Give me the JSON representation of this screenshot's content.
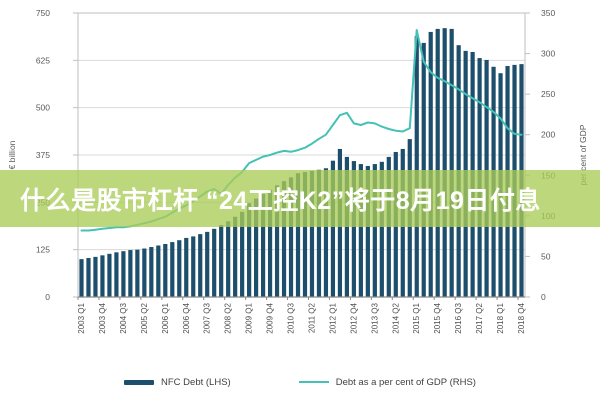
{
  "overlay": {
    "text": "什么是股市杠杆 “24工控K2”将于8月19日付息",
    "background": "rgba(171,204,88,0.78)",
    "text_color": "#ffffff"
  },
  "legend": {
    "items": [
      {
        "label": "NFC Debt (LHS)",
        "marker": "bar"
      },
      {
        "label": "Debt as a per cent of GDP (RHS)",
        "marker": "line"
      }
    ]
  },
  "chart_data": {
    "type": "bar",
    "subtype": "bar-plus-line-dual-axis",
    "grid": true,
    "legend_position": "bottom",
    "categories": [
      "2003 Q1",
      "2003 Q2",
      "2003 Q3",
      "2003 Q4",
      "2004 Q1",
      "2004 Q2",
      "2004 Q3",
      "2004 Q4",
      "2005 Q1",
      "2005 Q2",
      "2005 Q3",
      "2005 Q4",
      "2006 Q1",
      "2006 Q2",
      "2006 Q3",
      "2006 Q4",
      "2007 Q1",
      "2007 Q2",
      "2007 Q3",
      "2007 Q4",
      "2008 Q1",
      "2008 Q2",
      "2008 Q3",
      "2008 Q4",
      "2009 Q1",
      "2009 Q2",
      "2009 Q3",
      "2009 Q4",
      "2010 Q1",
      "2010 Q2",
      "2010 Q3",
      "2010 Q4",
      "2011 Q1",
      "2011 Q2",
      "2011 Q3",
      "2011 Q4",
      "2012 Q1",
      "2012 Q2",
      "2012 Q3",
      "2012 Q4",
      "2013 Q1",
      "2013 Q2",
      "2013 Q3",
      "2013 Q4",
      "2014 Q1",
      "2014 Q2",
      "2014 Q3",
      "2014 Q4",
      "2015 Q1",
      "2015 Q2",
      "2015 Q3",
      "2015 Q4",
      "2016 Q1",
      "2016 Q2",
      "2016 Q3",
      "2016 Q4",
      "2017 Q1",
      "2017 Q2",
      "2017 Q3",
      "2017 Q4",
      "2018 Q1",
      "2018 Q2",
      "2018 Q3",
      "2018 Q4"
    ],
    "x_axis": {
      "tick_every": 3,
      "tick_labels": [
        "2003 Q1",
        "2003 Q4",
        "2004 Q3",
        "2005 Q2",
        "2006 Q1",
        "2006 Q4",
        "2007 Q3",
        "2008 Q2",
        "2009 Q1",
        "2009 Q4",
        "2010 Q3",
        "2011 Q2",
        "2012 Q1",
        "2012 Q4",
        "2013 Q3",
        "2014 Q2",
        "2015 Q1",
        "2015 Q4",
        "2016 Q3",
        "2017 Q2",
        "2018 Q1",
        "2018 Q4"
      ]
    },
    "left_axis": {
      "label": "€ billion",
      "min": 0,
      "max": 750,
      "step": 125,
      "ticks": [
        0,
        125,
        250,
        375,
        500,
        625,
        750
      ]
    },
    "right_axis": {
      "label": "per cent of GDP",
      "min": 0,
      "max": 350,
      "step": 50,
      "ticks": [
        0,
        50,
        100,
        150,
        200,
        250,
        300,
        350
      ]
    },
    "series": [
      {
        "name": "NFC Debt (LHS)",
        "type": "bar",
        "axis": "left",
        "color": "#1d4f6d",
        "values": [
          100,
          103,
          106,
          110,
          114,
          118,
          121,
          124,
          125,
          128,
          132,
          136,
          140,
          145,
          150,
          156,
          160,
          166,
          172,
          180,
          190,
          200,
          212,
          225,
          248,
          260,
          272,
          283,
          295,
          306,
          316,
          327,
          330,
          333,
          336,
          340,
          360,
          391,
          370,
          359,
          351,
          346,
          351,
          357,
          370,
          383,
          391,
          417,
          689,
          671,
          700,
          708,
          710,
          708,
          665,
          650,
          647,
          631,
          626,
          608,
          591,
          610,
          613,
          615
        ]
      },
      {
        "name": "Debt as a per cent of GDP (RHS)",
        "type": "line",
        "axis": "right",
        "color": "#45c1b6",
        "values": [
          82,
          82,
          83,
          84,
          85,
          86,
          86,
          87,
          89,
          91,
          93,
          96,
          99,
          104,
          109,
          113,
          118,
          124,
          130,
          133,
          127,
          138,
          147,
          154,
          165,
          169,
          173,
          175,
          178,
          180,
          179,
          181,
          184,
          189,
          195,
          200,
          212,
          224,
          227,
          214,
          212,
          215,
          214,
          210,
          207,
          205,
          204,
          208,
          329,
          290,
          277,
          270,
          266,
          261,
          256,
          250,
          245,
          240,
          234,
          228,
          220,
          208,
          201,
          200
        ]
      }
    ],
    "colors": {
      "grid": "#d9d9d9",
      "plot_border": "#bfbfbf",
      "bottom_axis": "#898989",
      "tick_text": "#595959",
      "x_tick_text": "#4d4d4d"
    }
  }
}
